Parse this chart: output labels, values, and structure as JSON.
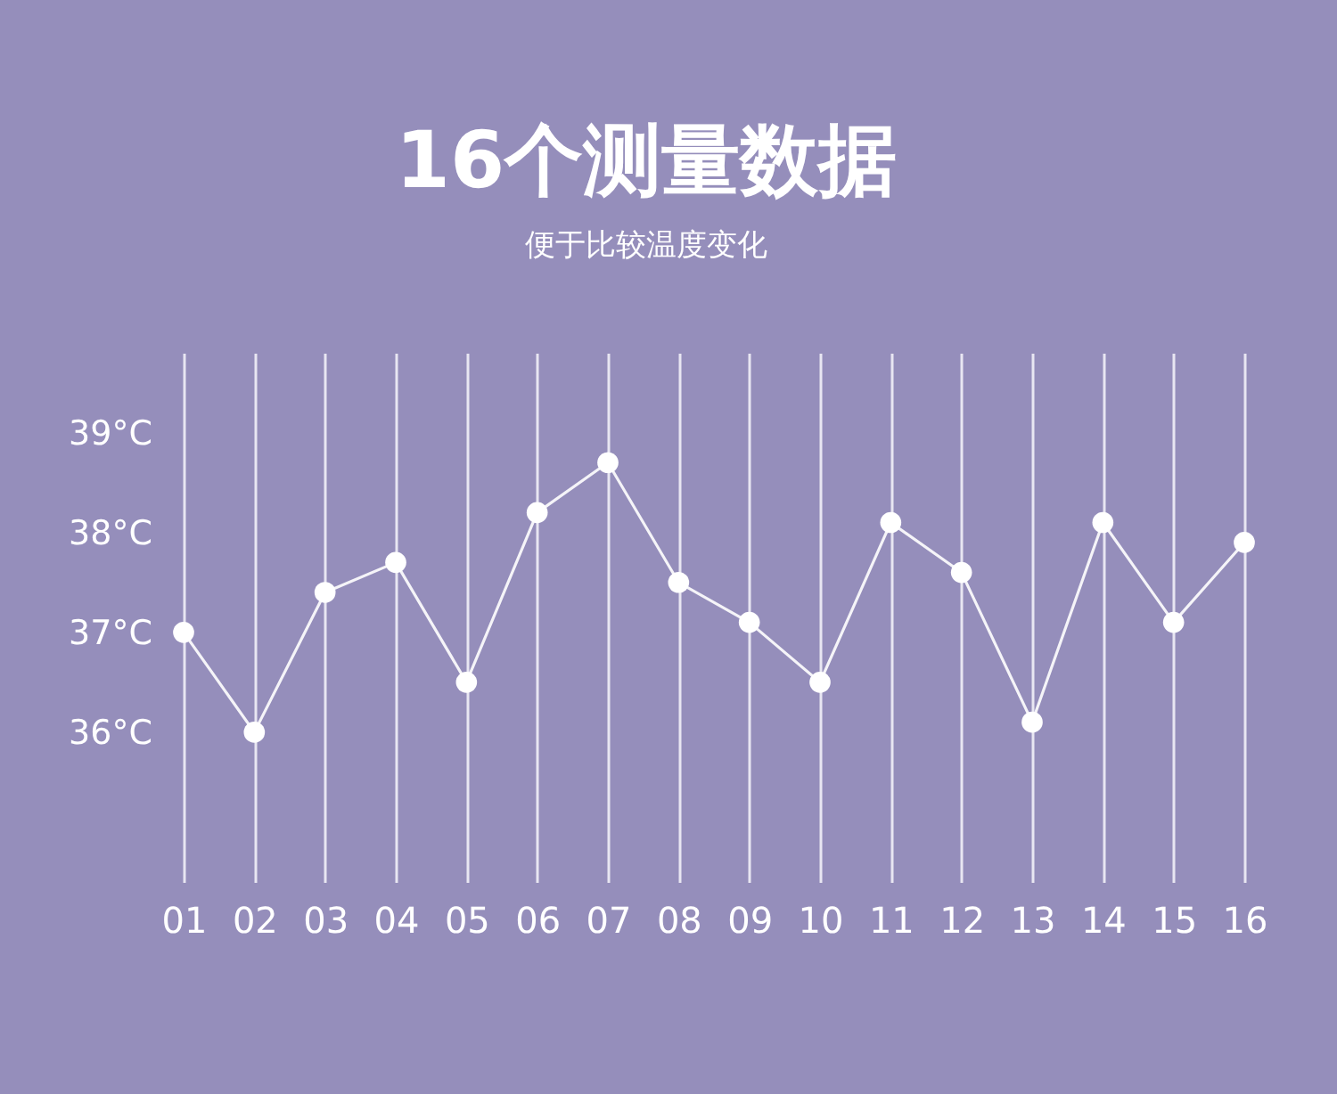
{
  "chart_data": {
    "type": "line",
    "title": "16个测量数据",
    "subtitle": "便于比较温度变化",
    "categories": [
      "01",
      "02",
      "03",
      "04",
      "05",
      "06",
      "07",
      "08",
      "09",
      "10",
      "11",
      "12",
      "13",
      "14",
      "15",
      "16"
    ],
    "series": [
      {
        "color": "#ffffff",
        "values": [
          37.0,
          36.0,
          37.4,
          37.7,
          36.5,
          38.2,
          38.7,
          37.5,
          37.1,
          36.5,
          38.1,
          37.6,
          36.1,
          38.1,
          37.1,
          37.9
        ]
      }
    ],
    "ylim": [
      34.5,
      39.8
    ],
    "yticks": [
      {
        "value": 36,
        "label": "36°C"
      },
      {
        "value": 37,
        "label": "37°C"
      },
      {
        "value": 38,
        "label": "38°C"
      },
      {
        "value": 39,
        "label": "39°C"
      }
    ],
    "grid": "x",
    "marker": "circle",
    "line_style": "solid"
  }
}
